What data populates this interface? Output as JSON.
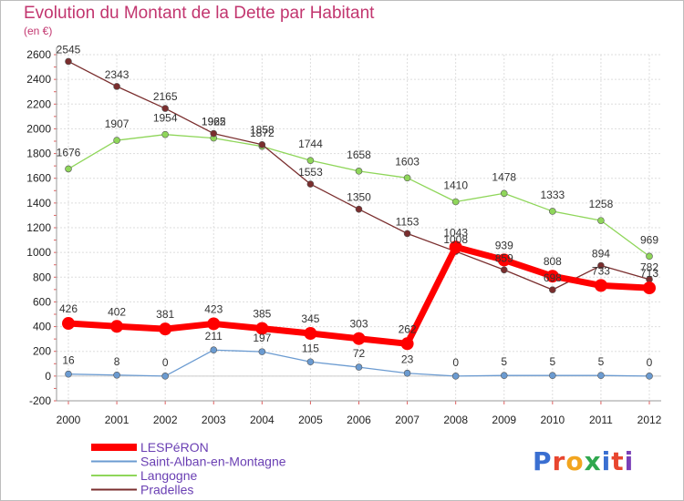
{
  "title": "Evolution du Montant de la Dette par Habitant",
  "unit": "(en €)",
  "logo": {
    "text": "Proxiti",
    "colors": [
      "#3a6fd1",
      "#e8462f",
      "#f2a51f",
      "#2fa84f",
      "#3a6fd1",
      "#e8462f",
      "#7a3fb8"
    ]
  },
  "chart_data": {
    "type": "line",
    "x": [
      2000,
      2001,
      2002,
      2003,
      2004,
      2005,
      2006,
      2007,
      2008,
      2009,
      2010,
      2011,
      2012
    ],
    "ylim": [
      -200,
      2600
    ],
    "yticks": [
      -200,
      0,
      200,
      400,
      600,
      800,
      1000,
      1200,
      1400,
      1600,
      1800,
      2000,
      2200,
      2400,
      2600
    ],
    "series": [
      {
        "name": "LESPéRON",
        "color": "#ff0000",
        "values": [
          426,
          402,
          381,
          423,
          385,
          345,
          303,
          262,
          1043,
          939,
          808,
          733,
          713
        ]
      },
      {
        "name": "Saint-Alban-en-Montagne",
        "color": "#6b9bd1",
        "values": [
          16,
          8,
          0,
          211,
          197,
          115,
          72,
          23,
          0,
          5,
          5,
          5,
          0
        ]
      },
      {
        "name": "Langogne",
        "color": "#8fd65a",
        "values": [
          1676,
          1907,
          1954,
          1925,
          1858,
          1744,
          1658,
          1603,
          1410,
          1478,
          1333,
          1258,
          969
        ]
      },
      {
        "name": "Pradelles",
        "color": "#7a2e2e",
        "values": [
          2545,
          2343,
          2165,
          1962,
          1872,
          1553,
          1350,
          1153,
          1008,
          859,
          698,
          894,
          782
        ]
      }
    ]
  }
}
